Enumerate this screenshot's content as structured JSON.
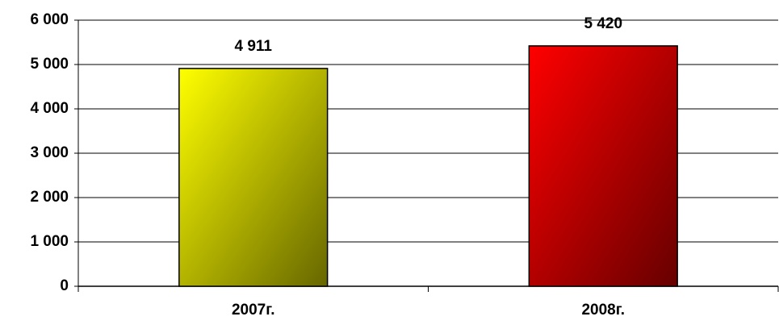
{
  "chart_data": {
    "type": "bar",
    "categories": [
      "2007г.",
      "2008г."
    ],
    "values": [
      4911,
      5420
    ],
    "value_labels": [
      "4 911",
      "5 420"
    ],
    "colors": [
      "#ffff00",
      "#ff0000"
    ],
    "ylim": [
      0,
      6000
    ],
    "yticks": [
      {
        "value": 0,
        "label": "0"
      },
      {
        "value": 1000,
        "label": "1 000"
      },
      {
        "value": 2000,
        "label": "2 000"
      },
      {
        "value": 3000,
        "label": "3 000"
      },
      {
        "value": 4000,
        "label": "4 000"
      },
      {
        "value": 5000,
        "label": "5 000"
      },
      {
        "value": 6000,
        "label": "6 000"
      }
    ],
    "grid": true
  }
}
